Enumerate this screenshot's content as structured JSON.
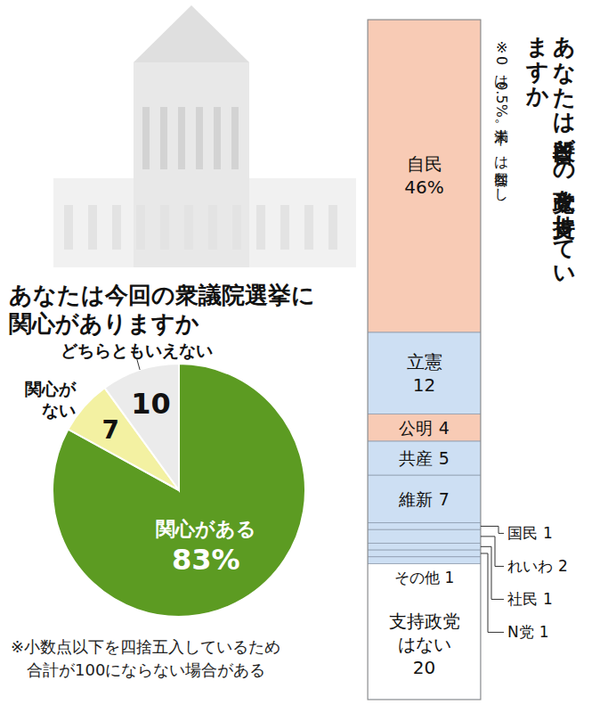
{
  "chart_data": [
    {
      "type": "pie",
      "title": "あなたは今回の衆議院選挙に関心がありますか",
      "categories": [
        "関心がある",
        "関心がない",
        "どちらともいえない"
      ],
      "values": [
        83,
        7,
        10
      ],
      "value_labels": [
        "83%",
        "7",
        "10"
      ],
      "colors": [
        "#5c9b22",
        "#f3f1a2",
        "#ebebeb"
      ],
      "data_labels": true,
      "annotations": [
        "※小数点以下を四捨五入しているため合計が100にならない場合がある"
      ]
    },
    {
      "type": "bar",
      "stacked": true,
      "title": "あなたは普段どの政党を支持していますか",
      "subtitle": "※0は0.5%未満。―は回答なし",
      "categories": [
        "自民",
        "立憲",
        "公明",
        "共産",
        "維新",
        "国民",
        "れいわ",
        "社民",
        "N党",
        "その他",
        "支持政党はない"
      ],
      "values": [
        46,
        12,
        4,
        5,
        7,
        1,
        2,
        1,
        1,
        1,
        20
      ],
      "value_labels": [
        "46%",
        "12",
        "4",
        "5",
        "7",
        "1",
        "2",
        "1",
        "1",
        "1",
        "20"
      ],
      "colors": [
        "#f8cbb5",
        "#cddff3",
        "#f8cbb5",
        "#cddff3",
        "#cddff3",
        "#cddff3",
        "#cddff3",
        "#cddff3",
        "#cddff3",
        "#cddff3",
        "#ffffff"
      ],
      "ylim": [
        0,
        100
      ],
      "data_labels": true,
      "tick_labels": false
    }
  ]
}
